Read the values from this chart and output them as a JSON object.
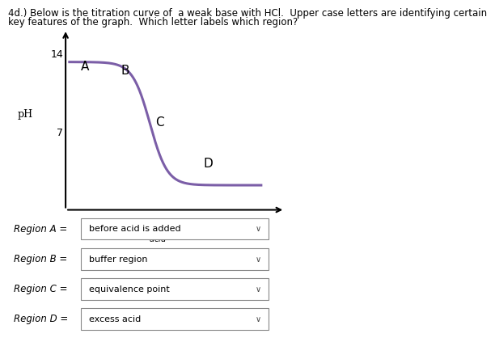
{
  "title_line1": "4d.) Below is the titration curve of  a weak base with HCl.  Upper case letters are identifying certain",
  "title_line2": "key features of the graph.  Which letter labels which region?",
  "title_fontsize": 8.5,
  "ylabel": "pH",
  "xlabel_math": "$V_{acid}$",
  "y14_label": "14",
  "y7_label": "7",
  "curve_color": "#7B5EA7",
  "curve_linewidth": 2.2,
  "label_A": "A",
  "label_B": "B",
  "label_C": "C",
  "label_D": "D",
  "label_fontsize": 11,
  "regions": [
    {
      "label": "Region A =",
      "value": "before acid is added"
    },
    {
      "label": "Region B =",
      "value": "buffer region"
    },
    {
      "label": "Region C =",
      "value": "equivalence point"
    },
    {
      "label": "Region D =",
      "value": "excess acid"
    }
  ],
  "region_label_fontsize": 8.5,
  "region_value_fontsize": 8.0,
  "background_color": "#f0eeeb"
}
